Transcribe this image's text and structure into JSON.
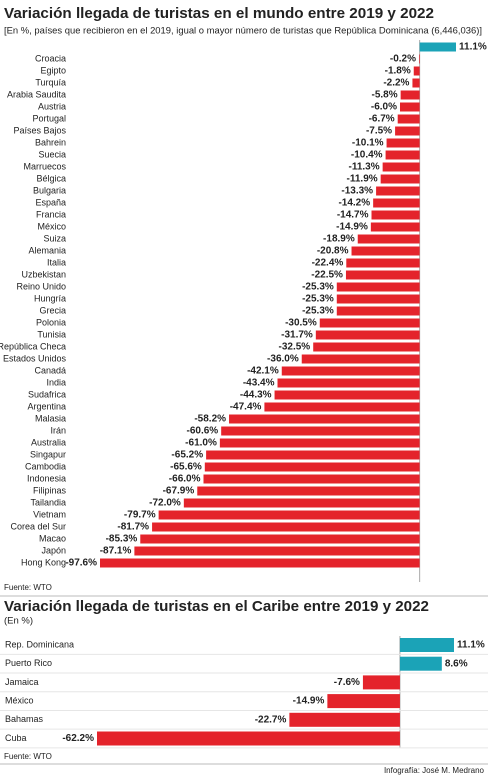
{
  "chart_data": [
    {
      "type": "bar",
      "orientation": "horizontal",
      "title": "Variación llegada de turistas en el mundo entre 2019 y 2022",
      "subtitle": "[En %, países que recibieron en el 2019,  igual o mayor número de turistas  que República Dominicana (6,446,036)]",
      "categories": [
        null,
        "Croacia",
        "Egipto",
        "Turquía",
        "Arabia Saudita",
        "Austria",
        "Portugal",
        "Países Bajos",
        "Bahrein",
        "Suecia",
        "Marruecos",
        "Bélgica",
        "Bulgaria",
        "España",
        "Francia",
        "México",
        "Suiza",
        "Alemania",
        "Italia",
        "Uzbekistan",
        "Reino Unido",
        "Hungría",
        "Grecia",
        "Polonia",
        "Tunisia",
        "República Checa",
        "Estados Unidos",
        "Canadá",
        "India",
        "Sudafrica",
        "Argentina",
        "Malasia",
        "Irán",
        "Australia",
        "Singapur",
        "Cambodia",
        "Indonesia",
        "Filipinas",
        "Tailandia",
        "Vietnam",
        "Corea del Sur",
        "Macao",
        "Japón",
        "Hong Kong"
      ],
      "values": [
        11.1,
        -0.2,
        -1.8,
        -2.2,
        -5.8,
        -6.0,
        -6.7,
        -7.5,
        -10.1,
        -10.4,
        -11.3,
        -11.9,
        -13.3,
        -14.2,
        -14.7,
        -14.9,
        -18.9,
        -20.8,
        -22.4,
        -22.5,
        -25.3,
        -25.3,
        -25.3,
        -30.5,
        -31.7,
        -32.5,
        -36.0,
        -42.1,
        -43.4,
        -44.3,
        -47.4,
        -58.2,
        -60.6,
        -61.0,
        -65.2,
        -65.6,
        -66.0,
        -67.9,
        -72.0,
        -79.7,
        -81.7,
        -85.3,
        -87.1,
        -97.6
      ],
      "value_labels": [
        "11.1%",
        "-0.2%",
        "-1.8%",
        "-2.2%",
        "-5.8%",
        "-6.0%",
        "-6.7%",
        "-7.5%",
        "-10.1%",
        "-10.4%",
        "-11.3%",
        "-11.9%",
        "-13.3%",
        "-14.2%",
        "-14.7%",
        "-14.9%",
        "-18.9%",
        "-20.8%",
        "-22.4%",
        "-22.5%",
        "-25.3%",
        "-25.3%",
        "-25.3%",
        "-30.5%",
        "-31.7%",
        "-32.5%",
        "-36.0%",
        "-42.1%",
        "-43.4%",
        "-44.3%",
        "-47.4%",
        "-58.2%",
        "-60.6%",
        "-61.0%",
        "-65.2%",
        "-65.6%",
        "-66.0%",
        "-67.9%",
        "-72.0%",
        "-79.7%",
        "-81.7%",
        "-85.3%",
        "-87.1%",
        "-97.6%"
      ],
      "positive_color": "#1ba3b7",
      "negative_color": "#e4232b",
      "source": "Fuente: WTO"
    },
    {
      "type": "bar",
      "orientation": "horizontal",
      "title": "Variación llegada de turistas en el Caribe entre 2019 y 2022",
      "subtitle": "(En %)",
      "categories": [
        "Rep. Dominicana",
        "Puerto Rico",
        "Jamaica",
        "México",
        "Bahamas",
        "Cuba"
      ],
      "values": [
        11.1,
        8.6,
        -7.6,
        -14.9,
        -22.7,
        -62.2
      ],
      "value_labels": [
        "11.1%",
        "8.6%",
        "-7.6%",
        "-14.9%",
        "-22.7%",
        "-62.2%"
      ],
      "positive_color": "#1ba3b7",
      "negative_color": "#e4232b",
      "source": "Fuente: WTO"
    }
  ],
  "credit": "Infografía: José M. Medrano"
}
